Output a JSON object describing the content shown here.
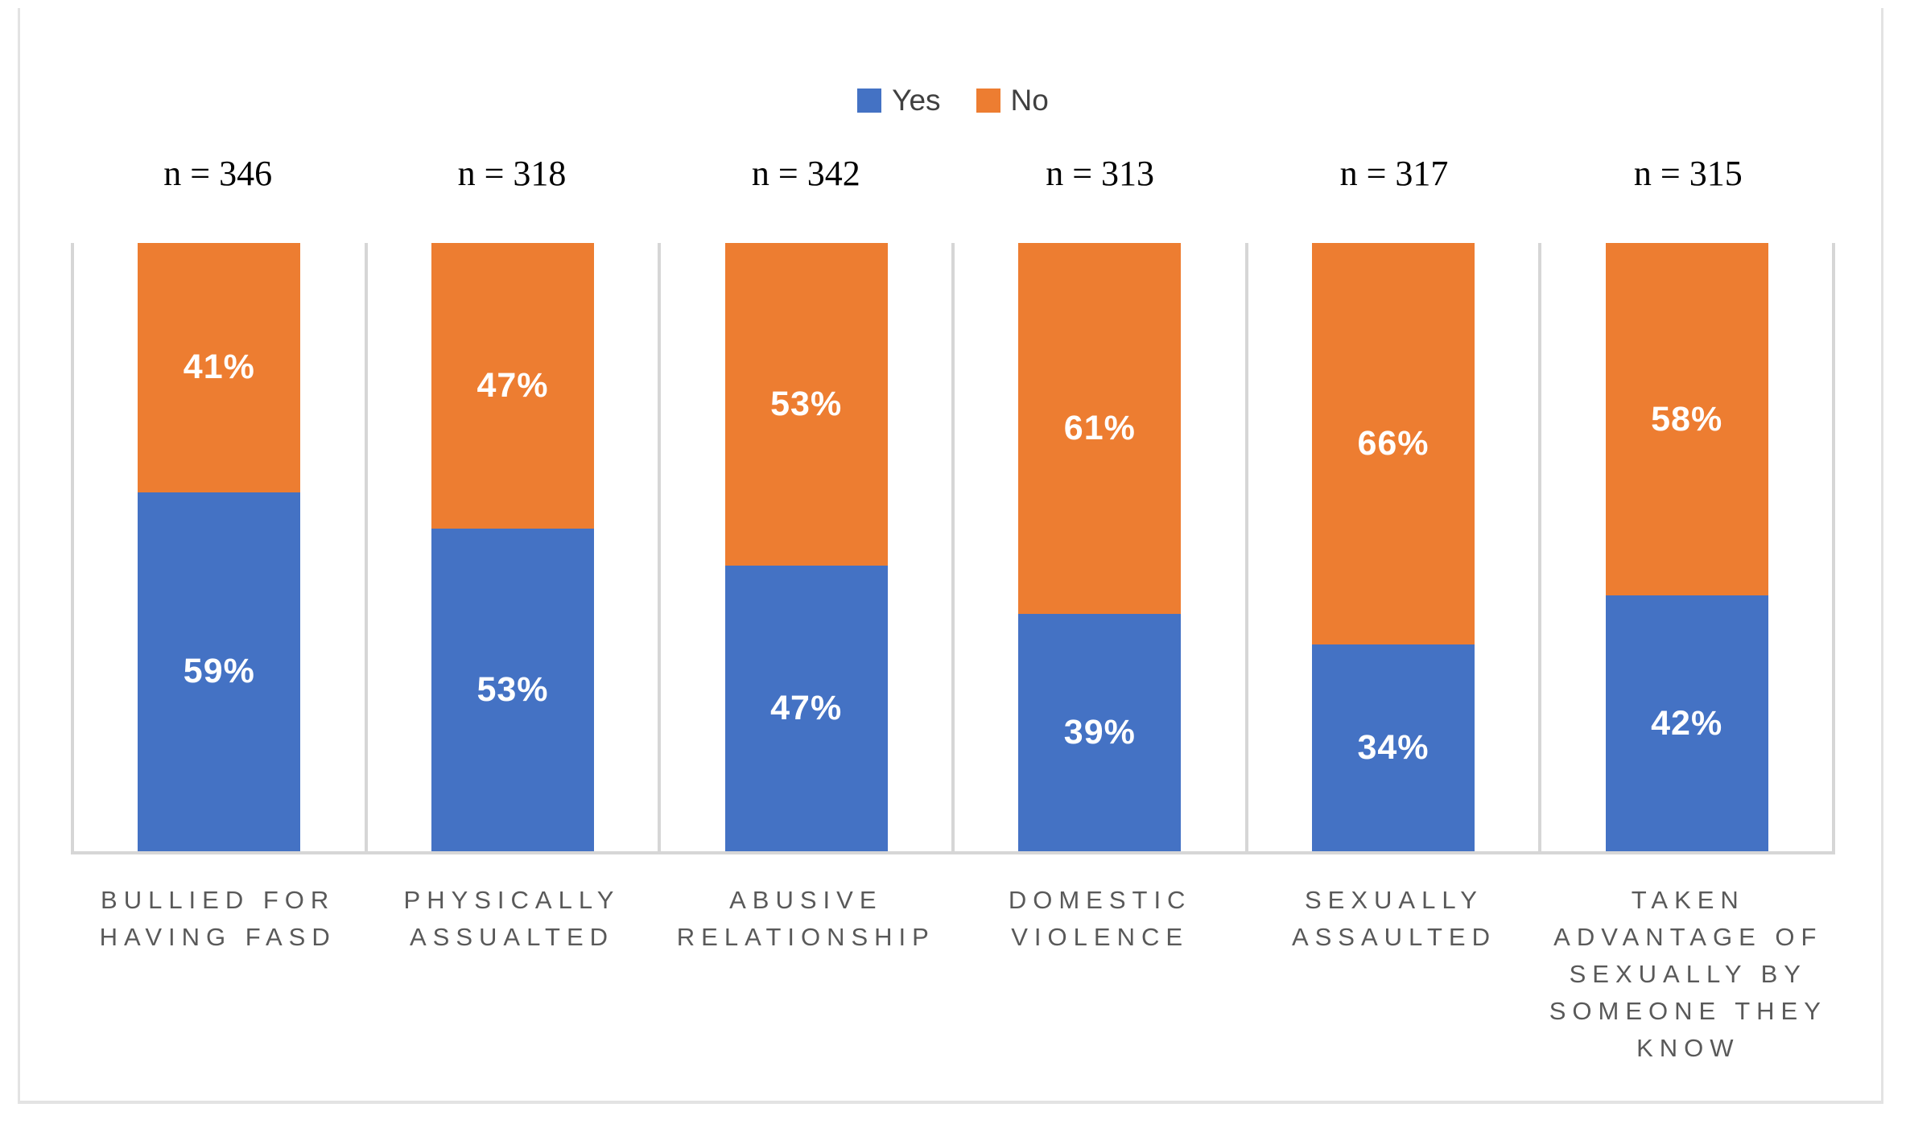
{
  "chart_data": {
    "type": "bar",
    "subtype": "stacked-100-percent",
    "orientation": "vertical-columns",
    "title": "",
    "xlabel": "",
    "ylabel": "",
    "ylim": [
      0,
      100
    ],
    "legend_position": "top-center",
    "gridlines": "vertical category separators and bottom axis line only",
    "categories": [
      "BULLIED FOR HAVING FASD",
      "PHYSICALLY ASSUALTED",
      "ABUSIVE RELATIONSHIP",
      "DOMESTIC VIOLENCE",
      "SEXUALLY ASSAULTED",
      "TAKEN ADVANTAGE OF SEXUALLY BY SOMEONE THEY KNOW"
    ],
    "sample_sizes": [
      "n = 346",
      "n = 318",
      "n = 342",
      "n = 313",
      "n = 317",
      "n = 315"
    ],
    "series": [
      {
        "name": "Yes",
        "color": "#4472C4",
        "stack_position": "bottom",
        "values": [
          59,
          53,
          47,
          39,
          34,
          42
        ],
        "labels": [
          "59%",
          "53%",
          "47%",
          "39%",
          "34%",
          "42%"
        ]
      },
      {
        "name": "No",
        "color": "#ED7D31",
        "stack_position": "top",
        "values": [
          41,
          47,
          53,
          61,
          66,
          58
        ],
        "labels": [
          "41%",
          "47%",
          "53%",
          "61%",
          "66%",
          "58%"
        ]
      }
    ],
    "value_label_style": "white bold percent centered inside each segment"
  },
  "colors": {
    "yes": "#4472C4",
    "no": "#ED7D31",
    "grid": "#D6D6D6",
    "frame_border": "#E3E3E3",
    "category_label": "#595959",
    "legend_text": "#404040",
    "n_label": "#000000"
  }
}
